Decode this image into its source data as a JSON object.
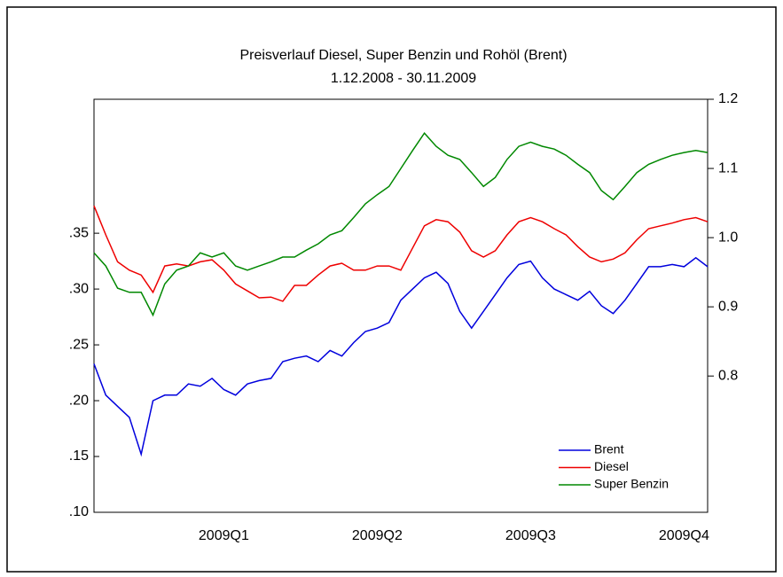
{
  "chart_data": {
    "type": "line",
    "title": "Preisverlauf Diesel, Super Benzin und Rohöl (Brent)",
    "subtitle": "1.12.2008 - 30.11.2009",
    "categories": [
      null,
      null,
      null,
      null,
      null,
      null,
      null,
      null,
      null,
      null,
      null,
      "2009Q1",
      null,
      null,
      null,
      null,
      null,
      null,
      null,
      null,
      null,
      null,
      null,
      null,
      "2009Q2",
      null,
      null,
      null,
      null,
      null,
      null,
      null,
      null,
      null,
      null,
      null,
      null,
      "2009Q3",
      null,
      null,
      null,
      null,
      null,
      null,
      null,
      null,
      null,
      null,
      null,
      null,
      "2009Q4",
      null,
      null
    ],
    "series": [
      {
        "name": "Brent",
        "color": "#0000dd",
        "axis": "y",
        "values": [
          0.233,
          0.205,
          0.195,
          0.185,
          0.152,
          0.2,
          0.205,
          0.205,
          0.215,
          0.213,
          0.22,
          0.21,
          0.205,
          0.215,
          0.218,
          0.22,
          0.235,
          0.238,
          0.24,
          0.235,
          0.245,
          0.24,
          0.252,
          0.262,
          0.265,
          0.27,
          0.29,
          0.3,
          0.31,
          0.315,
          0.305,
          0.28,
          0.265,
          0.28,
          0.295,
          0.31,
          0.322,
          0.325,
          0.31,
          0.3,
          0.295,
          0.29,
          0.298,
          0.285,
          0.278,
          0.29,
          0.305,
          0.32,
          0.32,
          0.322,
          0.32,
          0.328,
          0.32
        ]
      },
      {
        "name": "Diesel",
        "color": "#ee0000",
        "axis": "y2",
        "values": [
          1.046,
          1.004,
          0.965,
          0.953,
          0.946,
          0.921,
          0.959,
          0.962,
          0.959,
          0.965,
          0.968,
          0.953,
          0.933,
          0.923,
          0.913,
          0.914,
          0.908,
          0.931,
          0.931,
          0.946,
          0.959,
          0.963,
          0.953,
          0.953,
          0.959,
          0.959,
          0.953,
          0.985,
          1.017,
          1.026,
          1.023,
          1.008,
          0.981,
          0.972,
          0.981,
          1.004,
          1.023,
          1.029,
          1.023,
          1.013,
          1.004,
          0.987,
          0.972,
          0.965,
          0.969,
          0.978,
          0.997,
          1.013,
          1.017,
          1.021,
          1.026,
          1.029,
          1.023
        ]
      },
      {
        "name": "Super Benzin",
        "color": "#008800",
        "axis": "y2",
        "values": [
          0.978,
          0.959,
          0.927,
          0.921,
          0.921,
          0.888,
          0.933,
          0.953,
          0.959,
          0.978,
          0.972,
          0.978,
          0.959,
          0.953,
          0.959,
          0.965,
          0.972,
          0.972,
          0.982,
          0.991,
          1.004,
          1.01,
          1.029,
          1.049,
          1.062,
          1.074,
          1.1,
          1.126,
          1.151,
          1.132,
          1.119,
          1.113,
          1.094,
          1.074,
          1.087,
          1.113,
          1.132,
          1.138,
          1.132,
          1.128,
          1.119,
          1.106,
          1.094,
          1.068,
          1.055,
          1.074,
          1.094,
          1.106,
          1.113,
          1.119,
          1.123,
          1.126,
          1.123
        ]
      }
    ],
    "ylim": [
      0.1,
      0.47
    ],
    "yticks": [
      {
        "value": 0.1,
        "label": ".10"
      },
      {
        "value": 0.15,
        "label": ".15"
      },
      {
        "value": 0.2,
        "label": ".20"
      },
      {
        "value": 0.25,
        "label": ".25"
      },
      {
        "value": 0.3,
        "label": ".30"
      },
      {
        "value": 0.35,
        "label": ".35"
      }
    ],
    "y2lim": [
      0.603,
      1.2
    ],
    "y2ticks": [
      0.8,
      0.9,
      {
        "value": 1.0,
        "label": "1.0"
      },
      1.1,
      1.2
    ],
    "grid": false,
    "legend": "bottom-right"
  }
}
